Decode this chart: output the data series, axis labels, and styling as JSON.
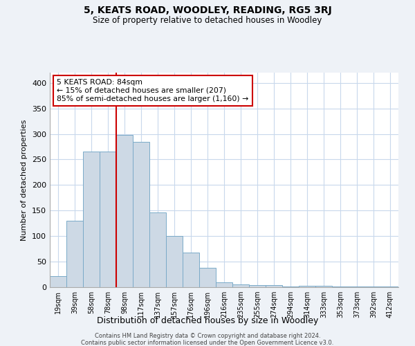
{
  "title": "5, KEATS ROAD, WOODLEY, READING, RG5 3RJ",
  "subtitle": "Size of property relative to detached houses in Woodley",
  "xlabel": "Distribution of detached houses by size in Woodley",
  "ylabel": "Number of detached properties",
  "bar_labels": [
    "19sqm",
    "39sqm",
    "58sqm",
    "78sqm",
    "98sqm",
    "117sqm",
    "137sqm",
    "157sqm",
    "176sqm",
    "196sqm",
    "216sqm",
    "235sqm",
    "255sqm",
    "274sqm",
    "294sqm",
    "314sqm",
    "333sqm",
    "353sqm",
    "373sqm",
    "392sqm",
    "412sqm"
  ],
  "bar_heights": [
    22,
    130,
    265,
    265,
    298,
    285,
    147,
    100,
    68,
    38,
    9,
    5,
    4,
    4,
    2,
    3,
    3,
    2,
    1,
    1,
    2
  ],
  "bar_color": "#cdd9e5",
  "bar_edge_color": "#7aaac8",
  "vline_color": "#cc0000",
  "annotation_text": "5 KEATS ROAD: 84sqm\n← 15% of detached houses are smaller (207)\n85% of semi-detached houses are larger (1,160) →",
  "annotation_box_color": "white",
  "annotation_box_edge": "#cc0000",
  "ylim": [
    0,
    420
  ],
  "yticks": [
    0,
    50,
    100,
    150,
    200,
    250,
    300,
    350,
    400
  ],
  "footer1": "Contains HM Land Registry data © Crown copyright and database right 2024.",
  "footer2": "Contains public sector information licensed under the Open Government Licence v3.0.",
  "background_color": "#eef2f7",
  "plot_bg_color": "white",
  "grid_color": "#c8d8ec"
}
